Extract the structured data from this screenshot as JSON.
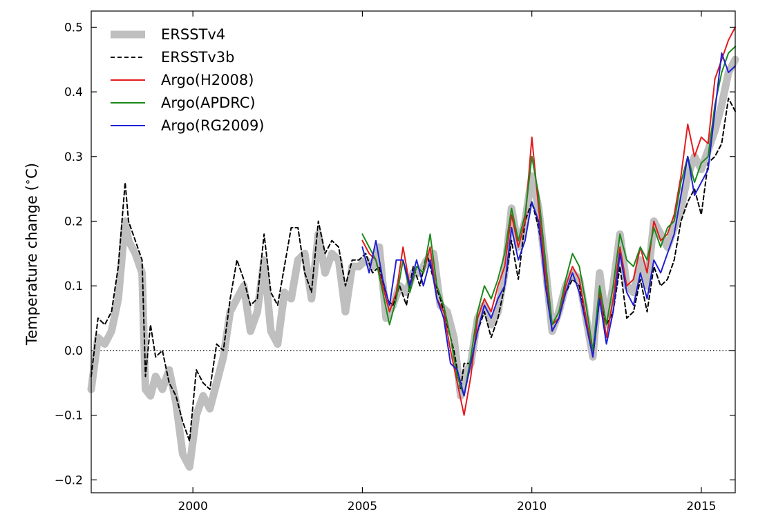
{
  "chart_data": {
    "type": "line",
    "title": "",
    "xlabel": "",
    "ylabel": "Temperature change (°C)",
    "ylabel_parts": [
      "Temperature change (",
      "∘",
      "C)"
    ],
    "xlim": [
      1997.0,
      2016.0
    ],
    "ylim": [
      -0.22,
      0.525
    ],
    "x_ticks": [
      2000,
      2005,
      2010,
      2015
    ],
    "x_tick_labels": [
      "2000",
      "2005",
      "2010",
      "2015"
    ],
    "y_ticks": [
      -0.2,
      -0.1,
      0.0,
      0.1,
      0.2,
      0.3,
      0.4,
      0.5
    ],
    "y_tick_labels": [
      "−0.2",
      "−0.1",
      "0.0",
      "0.1",
      "0.2",
      "0.3",
      "0.4",
      "0.5"
    ],
    "grid": false,
    "zero_line": {
      "y": 0.0,
      "style": "dotted",
      "color": "#000000"
    },
    "legend": {
      "position": "top-left"
    },
    "series": [
      {
        "name": "ERSSTv4",
        "color": "#bfbfbf",
        "style": "solid-thick",
        "x": [
          1997.0,
          1997.2,
          1997.4,
          1997.6,
          1997.8,
          1998.0,
          1998.1,
          1998.3,
          1998.5,
          1998.6,
          1998.75,
          1998.9,
          1999.1,
          1999.3,
          1999.5,
          1999.7,
          1999.9,
          2000.1,
          2000.3,
          2000.5,
          2000.7,
          2000.9,
          2001.1,
          2001.3,
          2001.5,
          2001.7,
          2001.9,
          2002.1,
          2002.3,
          2002.5,
          2002.7,
          2002.9,
          2003.1,
          2003.3,
          2003.5,
          2003.7,
          2003.9,
          2004.1,
          2004.3,
          2004.5,
          2004.7,
          2004.9,
          2005.1,
          2005.3,
          2005.5,
          2005.7,
          2005.9,
          2006.1,
          2006.3,
          2006.5,
          2006.7,
          2006.9,
          2007.1,
          2007.3,
          2007.5,
          2007.7,
          2007.9,
          2008.0,
          2008.2,
          2008.4,
          2008.6,
          2008.8,
          2009.0,
          2009.2,
          2009.4,
          2009.6,
          2009.8,
          2010.0,
          2010.2,
          2010.4,
          2010.6,
          2010.8,
          2011.0,
          2011.2,
          2011.4,
          2011.6,
          2011.8,
          2012.0,
          2012.2,
          2012.4,
          2012.6,
          2012.8,
          2013.0,
          2013.2,
          2013.4,
          2013.6,
          2013.8,
          2014.0,
          2014.2,
          2014.4,
          2014.6,
          2014.8,
          2015.0,
          2015.2,
          2015.4,
          2015.6,
          2015.8,
          2016.0
        ],
        "values": [
          -0.06,
          0.02,
          0.01,
          0.03,
          0.08,
          0.2,
          0.17,
          0.15,
          0.12,
          -0.06,
          -0.07,
          -0.04,
          -0.06,
          -0.03,
          -0.08,
          -0.16,
          -0.18,
          -0.1,
          -0.07,
          -0.09,
          -0.05,
          -0.01,
          0.06,
          0.08,
          0.1,
          0.03,
          0.06,
          0.14,
          0.03,
          0.01,
          0.09,
          0.08,
          0.14,
          0.15,
          0.08,
          0.18,
          0.12,
          0.15,
          0.14,
          0.06,
          0.13,
          0.13,
          0.14,
          0.13,
          0.16,
          0.05,
          0.07,
          0.1,
          0.09,
          0.12,
          0.12,
          0.14,
          0.15,
          0.07,
          0.06,
          0.02,
          -0.07,
          -0.04,
          -0.02,
          0.05,
          0.07,
          0.04,
          0.06,
          0.12,
          0.22,
          0.16,
          0.2,
          0.27,
          0.22,
          0.13,
          0.03,
          0.06,
          0.1,
          0.12,
          0.11,
          0.05,
          -0.01,
          0.12,
          0.04,
          0.1,
          0.18,
          0.1,
          0.09,
          0.14,
          0.1,
          0.2,
          0.18,
          0.16,
          0.19,
          0.22,
          0.27,
          0.3,
          0.28,
          0.31,
          0.34,
          0.38,
          0.43,
          0.45
        ]
      },
      {
        "name": "ERSSTv3b",
        "color": "#000000",
        "style": "dashed",
        "x": [
          1997.0,
          1997.2,
          1997.4,
          1997.6,
          1997.8,
          1998.0,
          1998.1,
          1998.3,
          1998.5,
          1998.6,
          1998.75,
          1998.9,
          1999.1,
          1999.3,
          1999.5,
          1999.7,
          1999.9,
          2000.1,
          2000.3,
          2000.5,
          2000.7,
          2000.9,
          2001.1,
          2001.3,
          2001.5,
          2001.7,
          2001.9,
          2002.1,
          2002.3,
          2002.5,
          2002.7,
          2002.9,
          2003.1,
          2003.3,
          2003.5,
          2003.7,
          2003.9,
          2004.1,
          2004.3,
          2004.5,
          2004.7,
          2004.9,
          2005.1,
          2005.3,
          2005.5,
          2005.7,
          2005.9,
          2006.1,
          2006.3,
          2006.5,
          2006.7,
          2006.9,
          2007.1,
          2007.3,
          2007.5,
          2007.7,
          2007.9,
          2008.0,
          2008.2,
          2008.4,
          2008.6,
          2008.8,
          2009.0,
          2009.2,
          2009.4,
          2009.6,
          2009.8,
          2010.0,
          2010.2,
          2010.4,
          2010.6,
          2010.8,
          2011.0,
          2011.2,
          2011.4,
          2011.6,
          2011.8,
          2012.0,
          2012.2,
          2012.4,
          2012.6,
          2012.8,
          2013.0,
          2013.2,
          2013.4,
          2013.6,
          2013.8,
          2014.0,
          2014.2,
          2014.4,
          2014.6,
          2014.8,
          2015.0,
          2015.2,
          2015.4,
          2015.6,
          2015.8,
          2016.0
        ],
        "values": [
          -0.04,
          0.05,
          0.04,
          0.06,
          0.13,
          0.26,
          0.2,
          0.17,
          0.14,
          -0.04,
          0.04,
          -0.01,
          0.0,
          -0.05,
          -0.07,
          -0.11,
          -0.14,
          -0.03,
          -0.05,
          -0.06,
          0.01,
          0.0,
          0.08,
          0.14,
          0.11,
          0.07,
          0.08,
          0.18,
          0.09,
          0.07,
          0.13,
          0.19,
          0.19,
          0.12,
          0.09,
          0.2,
          0.15,
          0.17,
          0.16,
          0.1,
          0.14,
          0.14,
          0.15,
          0.12,
          0.13,
          0.08,
          0.07,
          0.1,
          0.07,
          0.13,
          0.1,
          0.15,
          0.11,
          0.08,
          0.04,
          0.0,
          -0.06,
          -0.02,
          -0.02,
          0.03,
          0.06,
          0.02,
          0.05,
          0.1,
          0.17,
          0.11,
          0.2,
          0.23,
          0.19,
          0.12,
          0.03,
          0.05,
          0.09,
          0.11,
          0.1,
          0.05,
          -0.01,
          0.08,
          0.04,
          0.06,
          0.13,
          0.05,
          0.06,
          0.11,
          0.06,
          0.13,
          0.1,
          0.11,
          0.14,
          0.2,
          0.23,
          0.25,
          0.21,
          0.29,
          0.3,
          0.32,
          0.39,
          0.37
        ]
      },
      {
        "name": "Argo(H2008)",
        "color": "#e41a1c",
        "style": "solid",
        "x": [
          2005.0,
          2005.2,
          2005.4,
          2005.6,
          2005.8,
          2006.0,
          2006.2,
          2006.4,
          2006.6,
          2006.8,
          2007.0,
          2007.2,
          2007.4,
          2007.6,
          2007.8,
          2008.0,
          2008.2,
          2008.4,
          2008.6,
          2008.8,
          2009.0,
          2009.2,
          2009.4,
          2009.6,
          2009.8,
          2010.0,
          2010.2,
          2010.4,
          2010.6,
          2010.8,
          2011.0,
          2011.2,
          2011.4,
          2011.6,
          2011.8,
          2012.0,
          2012.2,
          2012.4,
          2012.6,
          2012.8,
          2013.0,
          2013.2,
          2013.4,
          2013.6,
          2013.8,
          2014.0,
          2014.2,
          2014.4,
          2014.6,
          2014.8,
          2015.0,
          2015.2,
          2015.4,
          2015.6,
          2015.8,
          2016.0
        ],
        "values": [
          0.17,
          0.15,
          0.14,
          0.1,
          0.06,
          0.09,
          0.16,
          0.1,
          0.13,
          0.12,
          0.16,
          0.08,
          0.06,
          0.0,
          -0.05,
          -0.1,
          -0.04,
          0.05,
          0.08,
          0.06,
          0.1,
          0.13,
          0.21,
          0.16,
          0.2,
          0.33,
          0.22,
          0.12,
          0.04,
          0.05,
          0.1,
          0.13,
          0.11,
          0.05,
          -0.01,
          0.09,
          0.02,
          0.08,
          0.16,
          0.1,
          0.11,
          0.16,
          0.12,
          0.2,
          0.17,
          0.18,
          0.21,
          0.27,
          0.35,
          0.3,
          0.33,
          0.32,
          0.42,
          0.45,
          0.48,
          0.5
        ]
      },
      {
        "name": "Argo(APDRC)",
        "color": "#1a8a1a",
        "style": "solid",
        "x": [
          2005.0,
          2005.2,
          2005.4,
          2005.6,
          2005.8,
          2006.0,
          2006.2,
          2006.4,
          2006.6,
          2006.8,
          2007.0,
          2007.2,
          2007.4,
          2007.6,
          2007.8,
          2008.0,
          2008.2,
          2008.4,
          2008.6,
          2008.8,
          2009.0,
          2009.2,
          2009.4,
          2009.6,
          2009.8,
          2010.0,
          2010.2,
          2010.4,
          2010.6,
          2010.8,
          2011.0,
          2011.2,
          2011.4,
          2011.6,
          2011.8,
          2012.0,
          2012.2,
          2012.4,
          2012.6,
          2012.8,
          2013.0,
          2013.2,
          2013.4,
          2013.6,
          2013.8,
          2014.0,
          2014.2,
          2014.4,
          2014.6,
          2014.8,
          2015.0,
          2015.2,
          2015.4,
          2015.6,
          2015.8,
          2016.0
        ],
        "values": [
          0.18,
          0.16,
          0.14,
          0.09,
          0.04,
          0.08,
          0.14,
          0.09,
          0.13,
          0.12,
          0.18,
          0.1,
          0.07,
          0.02,
          -0.04,
          -0.07,
          -0.01,
          0.06,
          0.1,
          0.08,
          0.11,
          0.15,
          0.22,
          0.17,
          0.21,
          0.3,
          0.24,
          0.14,
          0.04,
          0.06,
          0.11,
          0.15,
          0.13,
          0.07,
          0.0,
          0.1,
          0.04,
          0.1,
          0.18,
          0.14,
          0.13,
          0.16,
          0.14,
          0.19,
          0.16,
          0.19,
          0.2,
          0.26,
          0.3,
          0.26,
          0.29,
          0.3,
          0.38,
          0.43,
          0.46,
          0.47
        ]
      },
      {
        "name": "Argo(RG2009)",
        "color": "#1f1fd6",
        "style": "solid",
        "x": [
          2005.0,
          2005.2,
          2005.4,
          2005.6,
          2005.8,
          2006.0,
          2006.2,
          2006.4,
          2006.6,
          2006.8,
          2007.0,
          2007.2,
          2007.4,
          2007.6,
          2007.8,
          2008.0,
          2008.2,
          2008.4,
          2008.6,
          2008.8,
          2009.0,
          2009.2,
          2009.4,
          2009.6,
          2009.8,
          2010.0,
          2010.2,
          2010.4,
          2010.6,
          2010.8,
          2011.0,
          2011.2,
          2011.4,
          2011.6,
          2011.8,
          2012.0,
          2012.2,
          2012.4,
          2012.6,
          2012.8,
          2013.0,
          2013.2,
          2013.4,
          2013.6,
          2013.8,
          2014.0,
          2014.2,
          2014.4,
          2014.6,
          2014.8,
          2015.0,
          2015.2,
          2015.4,
          2015.6,
          2015.8,
          2016.0
        ],
        "values": [
          0.16,
          0.12,
          0.17,
          0.11,
          0.07,
          0.14,
          0.14,
          0.1,
          0.14,
          0.1,
          0.14,
          0.08,
          0.05,
          -0.02,
          -0.03,
          -0.07,
          -0.02,
          0.03,
          0.07,
          0.05,
          0.08,
          0.1,
          0.19,
          0.14,
          0.17,
          0.23,
          0.2,
          0.1,
          0.03,
          0.05,
          0.09,
          0.12,
          0.09,
          0.04,
          -0.01,
          0.08,
          0.01,
          0.06,
          0.15,
          0.09,
          0.07,
          0.12,
          0.08,
          0.14,
          0.12,
          0.15,
          0.18,
          0.24,
          0.3,
          0.24,
          0.26,
          0.28,
          0.37,
          0.46,
          0.43,
          0.44
        ]
      }
    ]
  }
}
